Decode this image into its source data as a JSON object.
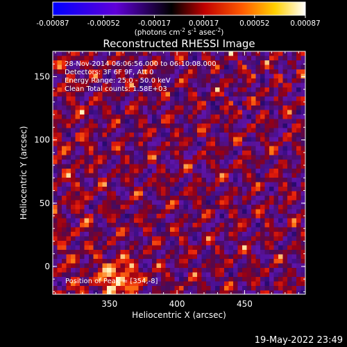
{
  "chart_data": {
    "type": "heatmap",
    "title": "Reconstructed RHESSI Image",
    "xlabel": "Heliocentric X (arcsec)",
    "ylabel": "Heliocentric Y (arcsec)",
    "xlim": [
      308,
      495
    ],
    "ylim": [
      -22,
      170
    ],
    "x_ticks": [
      350,
      400,
      450
    ],
    "y_ticks": [
      0,
      50,
      100,
      150
    ],
    "grid": false,
    "colorbar": {
      "placement": "top",
      "range": [
        -0.00087,
        0.00087
      ],
      "tick_values": [
        -0.00087,
        -0.00052,
        -0.00017,
        0.00017,
        0.00052,
        0.00087
      ],
      "tick_labels": [
        "-0.00087",
        "-0.00052",
        "-0.00017",
        "0.00017",
        "0.00052",
        "0.00087"
      ],
      "unit_base": "(photons cm",
      "unit_exp1": "-2",
      "unit_mid1": " s",
      "unit_exp2": "-1",
      "unit_mid2": " asec",
      "unit_exp3": "-2",
      "unit_end": ")"
    },
    "annotations": [
      "28-Nov-2014 06:06:56.000 to 06:10:08.000",
      "Detectors: 3F 6F 9F, Att 0",
      "Energy Range: 25.0 - 50.0 keV",
      "Clean     Total counts: 1.58E+03"
    ],
    "peak_label": "Position of Peak = [354,-8]",
    "peak": {
      "x": 354,
      "y": -8
    },
    "colors": {
      "background": "#000000",
      "text": "#ffffff",
      "axes": "#ffffff"
    }
  },
  "footer": {
    "timestamp": "19-May-2022 23:49"
  }
}
